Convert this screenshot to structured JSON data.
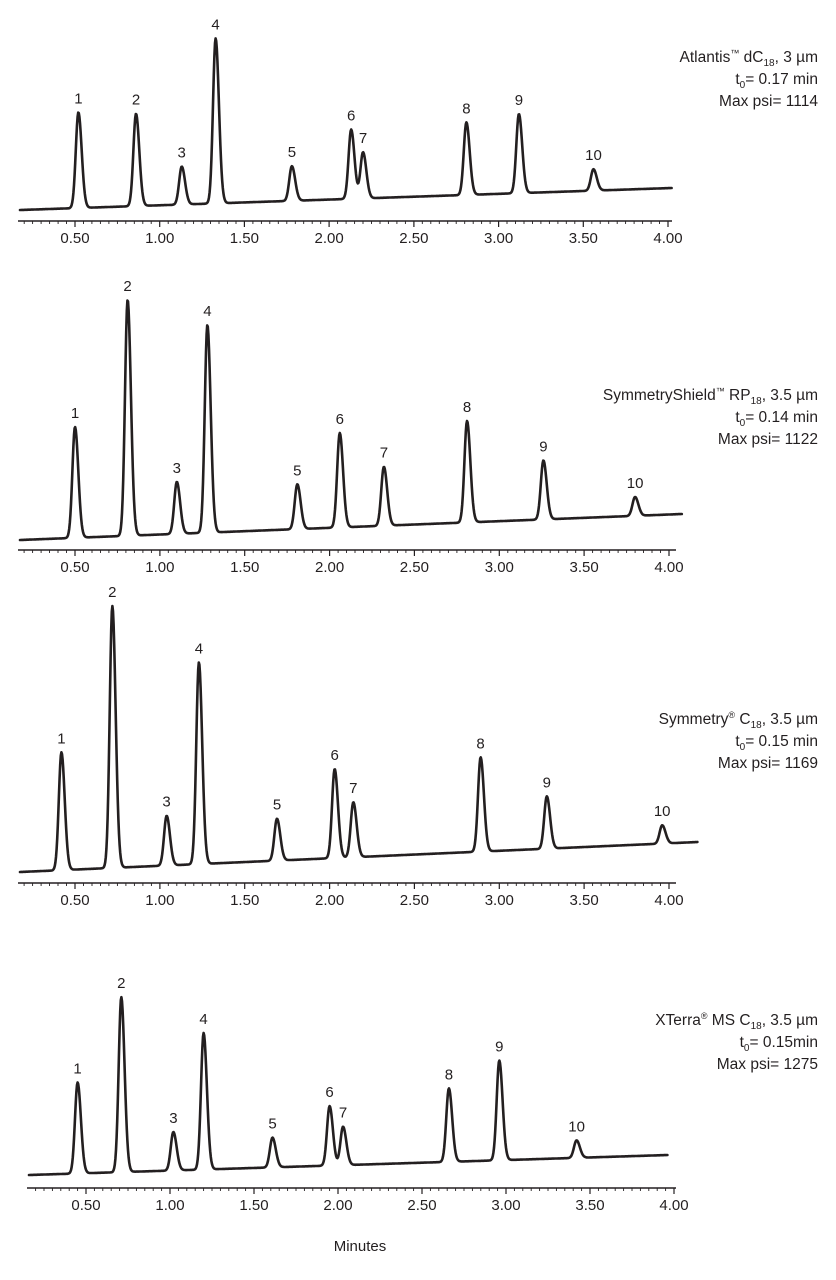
{
  "chart_data": {
    "type": "line",
    "title": "",
    "xlabel": "Minutes",
    "ylabel": "",
    "xlim": [
      0.17,
      4.0
    ],
    "x_ticks": [
      "0.50",
      "1.00",
      "1.50",
      "2.00",
      "2.50",
      "3.00",
      "3.50",
      "4.00"
    ],
    "grid": false,
    "panels": [
      {
        "column": "Atlantis™ dC18, 3 µm",
        "column_parts": {
          "name": "Atlantis",
          "mark": "™",
          "phase": " dC",
          "sub": "18",
          "tail": ", 3 µm"
        },
        "t0_label": "t",
        "t0_sub": "0",
        "t0_value": "= 0.17 min",
        "t0": 0.17,
        "max_psi_label": "Max psi= 1114",
        "max_psi": 1114,
        "xlim": [
          0.17,
          4.0
        ],
        "peaks": [
          {
            "label": "1",
            "x": 0.52,
            "height": 0.58
          },
          {
            "label": "2",
            "x": 0.86,
            "height": 0.56
          },
          {
            "label": "3",
            "x": 1.13,
            "height": 0.23
          },
          {
            "label": "4",
            "x": 1.33,
            "height": 1.0
          },
          {
            "label": "5",
            "x": 1.78,
            "height": 0.21
          },
          {
            "label": "6",
            "x": 2.13,
            "height": 0.42
          },
          {
            "label": "7",
            "x": 2.2,
            "height": 0.28
          },
          {
            "label": "8",
            "x": 2.81,
            "height": 0.44
          },
          {
            "label": "9",
            "x": 3.12,
            "height": 0.48
          },
          {
            "label": "10",
            "x": 3.56,
            "height": 0.13
          }
        ]
      },
      {
        "column": "SymmetryShield™ RP18, 3.5 µm",
        "column_parts": {
          "name": "SymmetryShield",
          "mark": "™",
          "phase": " RP",
          "sub": "18",
          "tail": ", 3.5 µm"
        },
        "t0_label": "t",
        "t0_sub": "0",
        "t0_value": "= 0.14 min",
        "t0": 0.14,
        "max_psi_label": "Max psi= 1122",
        "max_psi": 1122,
        "xlim": [
          0.17,
          4.0
        ],
        "peaks": [
          {
            "label": "1",
            "x": 0.5,
            "height": 0.47
          },
          {
            "label": "2",
            "x": 0.81,
            "height": 1.0
          },
          {
            "label": "3",
            "x": 1.1,
            "height": 0.22
          },
          {
            "label": "4",
            "x": 1.28,
            "height": 0.88
          },
          {
            "label": "5",
            "x": 1.81,
            "height": 0.19
          },
          {
            "label": "6",
            "x": 2.06,
            "height": 0.4
          },
          {
            "label": "7",
            "x": 2.32,
            "height": 0.25
          },
          {
            "label": "8",
            "x": 2.81,
            "height": 0.43
          },
          {
            "label": "9",
            "x": 3.26,
            "height": 0.25
          },
          {
            "label": "10",
            "x": 3.8,
            "height": 0.08
          }
        ]
      },
      {
        "column": "Symmetry® C18, 3.5 µm",
        "column_parts": {
          "name": "Symmetry",
          "mark": "®",
          "phase": " C",
          "sub": "18",
          "tail": ", 3.5 µm"
        },
        "t0_label": "t",
        "t0_sub": "0",
        "t0_value": "= 0.15 min",
        "t0": 0.15,
        "max_psi_label": "Max psi= 1169",
        "max_psi": 1169,
        "xlim": [
          0.17,
          4.0
        ],
        "peaks": [
          {
            "label": "1",
            "x": 0.42,
            "height": 0.45
          },
          {
            "label": "2",
            "x": 0.72,
            "height": 1.0
          },
          {
            "label": "3",
            "x": 1.04,
            "height": 0.19
          },
          {
            "label": "4",
            "x": 1.23,
            "height": 0.77
          },
          {
            "label": "5",
            "x": 1.69,
            "height": 0.16
          },
          {
            "label": "6",
            "x": 2.03,
            "height": 0.34
          },
          {
            "label": "7",
            "x": 2.14,
            "height": 0.21
          },
          {
            "label": "8",
            "x": 2.89,
            "height": 0.36
          },
          {
            "label": "9",
            "x": 3.28,
            "height": 0.2
          },
          {
            "label": "10",
            "x": 3.96,
            "height": 0.07
          }
        ]
      },
      {
        "column": "XTerra® MS C18, 3.5 µm",
        "column_parts": {
          "name": "XTerra",
          "mark": "®",
          "phase": " MS C",
          "sub": "18",
          "tail": ", 3.5 µm"
        },
        "t0_label": "t",
        "t0_sub": "0",
        "t0_value": "= 0.15min",
        "t0": 0.15,
        "max_psi_label": "Max psi= 1275",
        "max_psi": 1275,
        "xlim": [
          0.17,
          4.0
        ],
        "peaks": [
          {
            "label": "1",
            "x": 0.45,
            "height": 0.52
          },
          {
            "label": "2",
            "x": 0.71,
            "height": 1.0
          },
          {
            "label": "3",
            "x": 1.02,
            "height": 0.22
          },
          {
            "label": "4",
            "x": 1.2,
            "height": 0.78
          },
          {
            "label": "5",
            "x": 1.61,
            "height": 0.17
          },
          {
            "label": "6",
            "x": 1.95,
            "height": 0.34
          },
          {
            "label": "7",
            "x": 2.03,
            "height": 0.22
          },
          {
            "label": "8",
            "x": 2.66,
            "height": 0.42
          },
          {
            "label": "9",
            "x": 2.96,
            "height": 0.57
          },
          {
            "label": "10",
            "x": 3.42,
            "height": 0.1
          }
        ]
      }
    ]
  }
}
